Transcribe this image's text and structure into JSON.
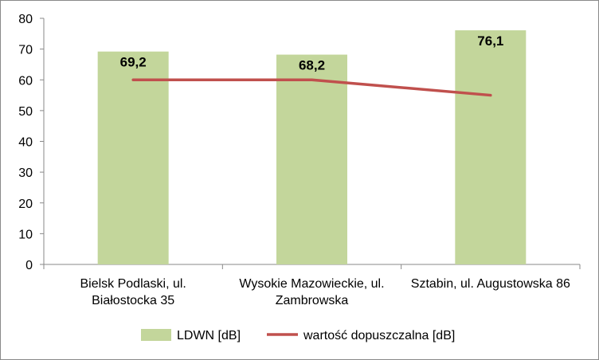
{
  "chart_data": {
    "type": "bar",
    "categories": [
      [
        "Bielsk Podlaski, ul.",
        "Białostocka 35"
      ],
      [
        "Wysokie Mazowieckie, ul.",
        "Zambrowska"
      ],
      [
        "Sztabin, ul. Augustowska 86"
      ]
    ],
    "series": [
      {
        "name": "LDWN [dB]",
        "kind": "bar",
        "values": [
          69.2,
          68.2,
          76.1
        ],
        "labels": [
          "69,2",
          "68,2",
          "76,1"
        ],
        "color": "#c3d69b"
      },
      {
        "name": "wartość dopuszczalna [dB]",
        "kind": "line",
        "values": [
          60,
          60,
          55
        ],
        "color": "#c0504d"
      }
    ],
    "ylim": [
      0,
      80
    ],
    "yticks": [
      0,
      10,
      20,
      30,
      40,
      50,
      60,
      70,
      80
    ],
    "grid": false,
    "legend": "bottom",
    "title": "",
    "xlabel": "",
    "ylabel": ""
  }
}
